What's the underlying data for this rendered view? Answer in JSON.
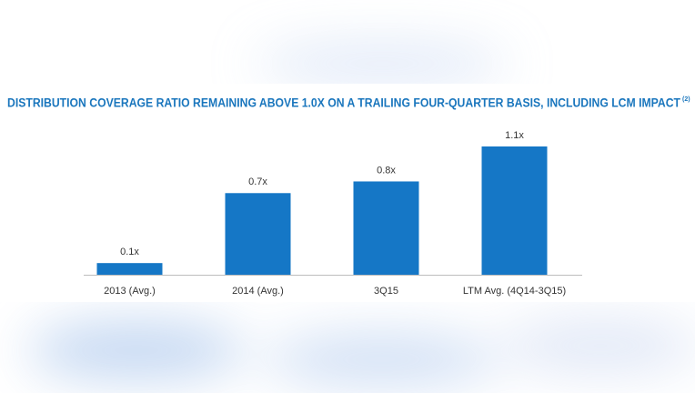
{
  "chart_data": {
    "type": "bar",
    "title": "DISTRIBUTION COVERAGE RATIO REMAINING ABOVE 1.0X ON A TRAILING FOUR-QUARTER BASIS, INCLUDING LCM IMPACT",
    "title_note": "(2)",
    "categories": [
      "2013 (Avg.)",
      "2014 (Avg.)",
      "3Q15",
      "LTM Avg. (4Q14-3Q15)"
    ],
    "values": [
      0.1,
      0.7,
      0.8,
      1.1
    ],
    "value_labels": [
      "0.1x",
      "0.7x",
      "0.8x",
      "1.1x"
    ],
    "color": "#1577c6"
  }
}
